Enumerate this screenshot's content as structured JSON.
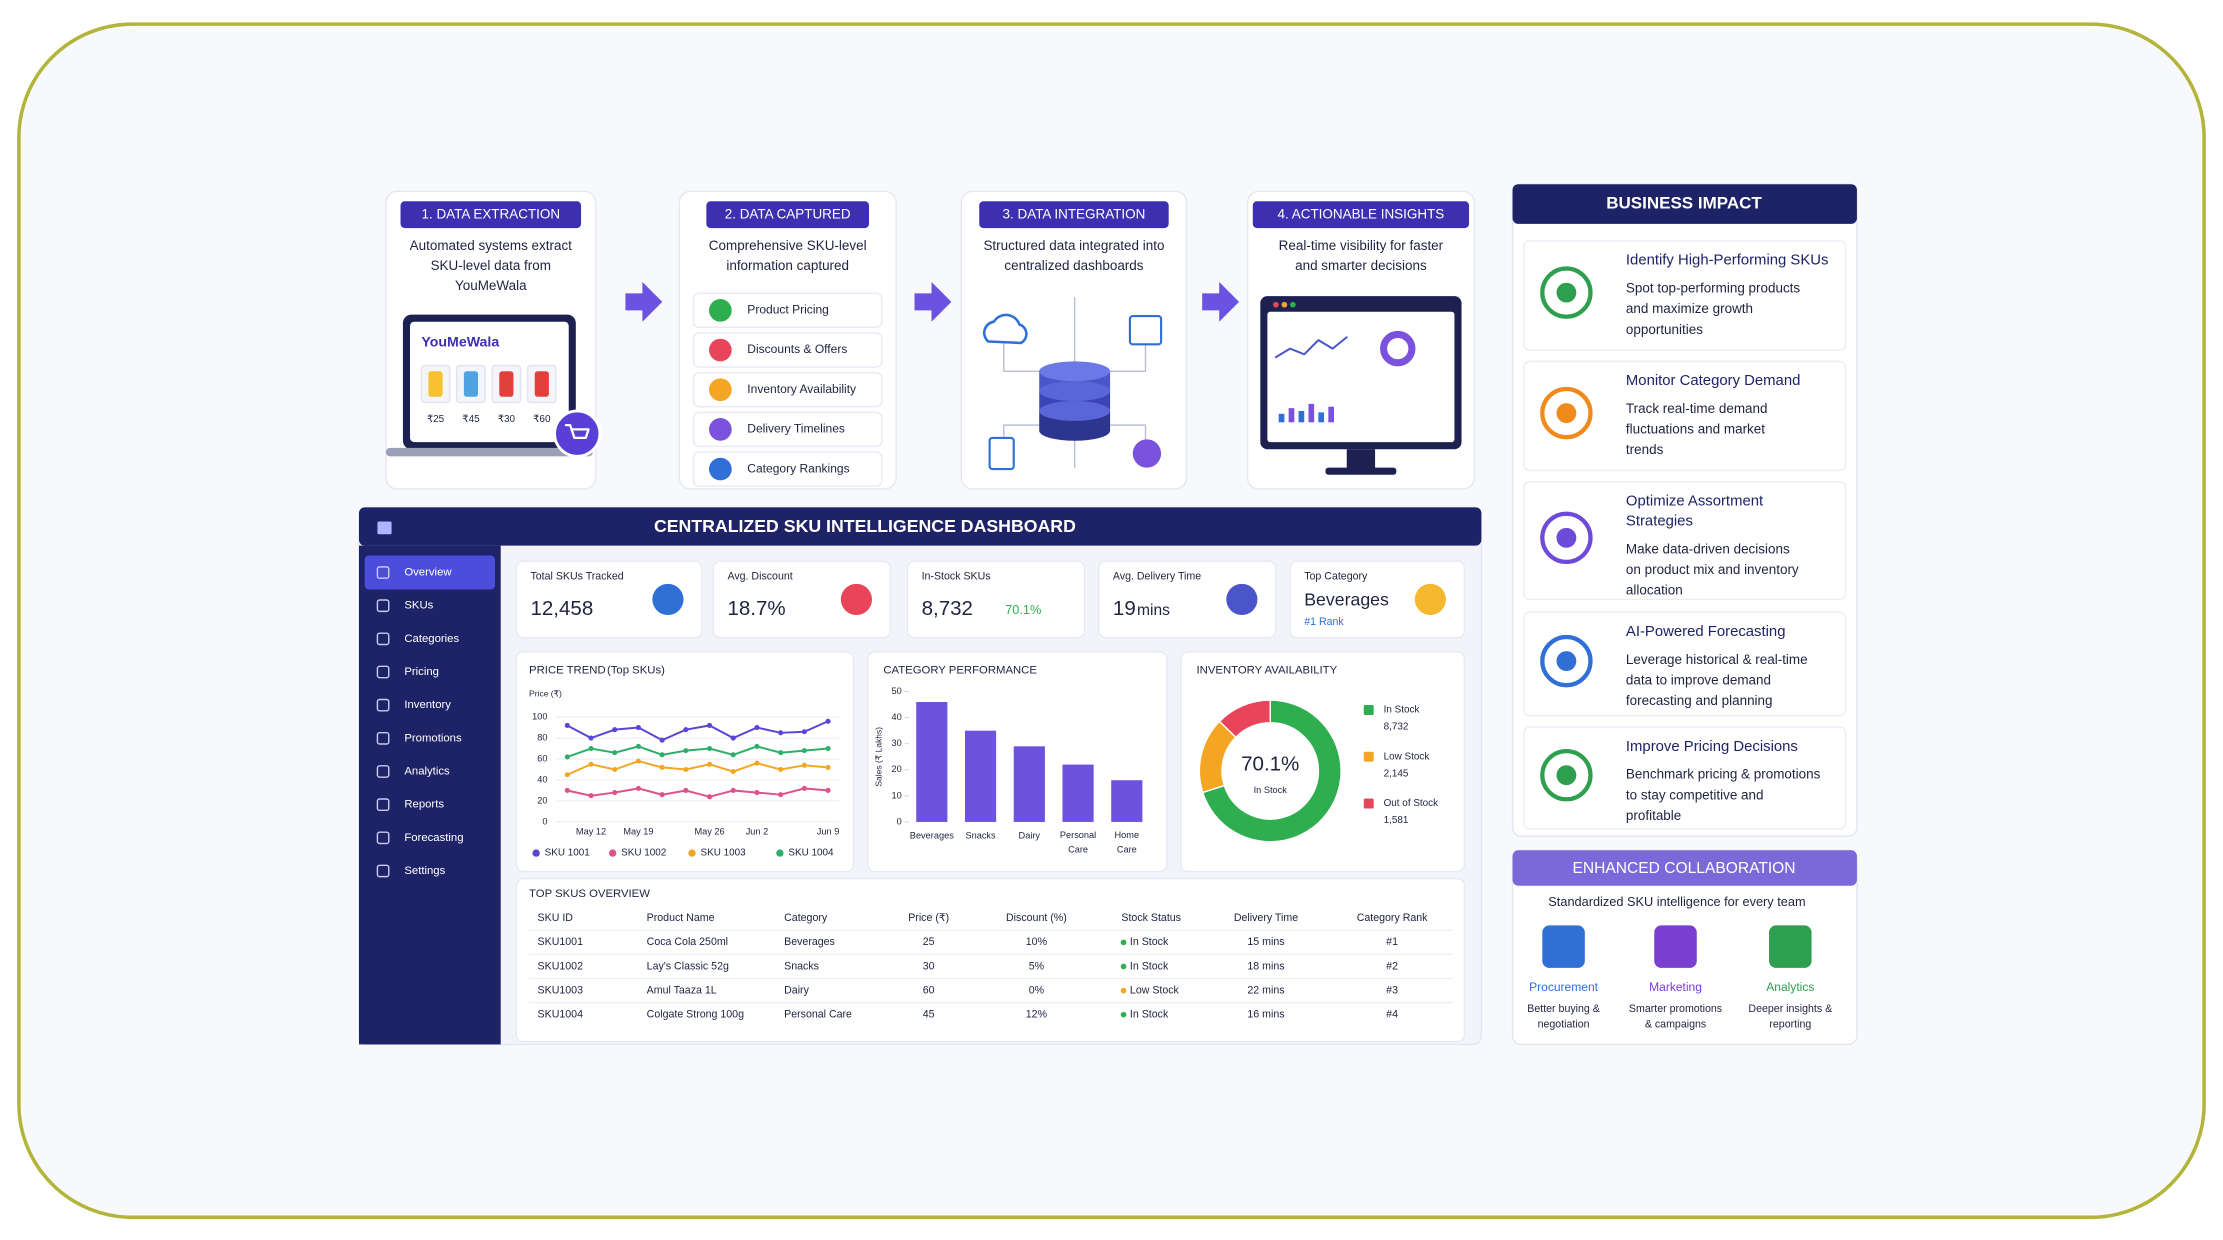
{
  "steps": [
    {
      "badge": "1. DATA EXTRACTION",
      "description": [
        "Automated systems extract",
        "SKU-level data from",
        "YouMeWala"
      ]
    },
    {
      "badge": "2. DATA CAPTURED",
      "description": [
        "Comprehensive SKU-level",
        "information captured"
      ]
    },
    {
      "badge": "3. DATA INTEGRATION",
      "description": [
        "Structured data integrated into",
        "centralized dashboards"
      ]
    },
    {
      "badge": "4. ACTIONABLE INSIGHTS",
      "description": [
        "Real-time visibility for faster",
        "and smarter decisions"
      ]
    }
  ],
  "store": {
    "brand": "YouMeWala",
    "prices": [
      "₹25",
      "₹45",
      "₹30",
      "₹60"
    ]
  },
  "captured_fields": [
    "Product Pricing",
    "Discounts & Offers",
    "Inventory Availability",
    "Delivery Timelines",
    "Category Rankings"
  ],
  "dashboard": {
    "title": "CENTRALIZED SKU INTELLIGENCE DASHBOARD",
    "nav": [
      "Overview",
      "SKUs",
      "Categories",
      "Pricing",
      "Inventory",
      "Promotions",
      "Analytics",
      "Reports",
      "Forecasting",
      "Settings"
    ],
    "kpis": [
      {
        "label": "Total SKUs Tracked",
        "value": "12,458"
      },
      {
        "label": "Avg. Discount",
        "value": "18.7%"
      },
      {
        "label": "In-Stock SKUs",
        "value": "8,732",
        "note": "70.1%"
      },
      {
        "label": "Avg. Delivery Time",
        "value": "19",
        "note": "mins"
      },
      {
        "label": "Top Category",
        "value": "Beverages",
        "note": "#1 Rank"
      }
    ],
    "table": {
      "title": "TOP SKUS OVERVIEW",
      "columns": [
        "SKU ID",
        "Product Name",
        "Category",
        "Price (₹)",
        "Discount (%)",
        "Stock Status",
        "Delivery Time",
        "Category Rank"
      ],
      "rows": [
        [
          "SKU1001",
          "Coca Cola 250ml",
          "Beverages",
          "25",
          "10%",
          "In Stock",
          "15 mins",
          "#1"
        ],
        [
          "SKU1002",
          "Lay's Classic 52g",
          "Snacks",
          "30",
          "5%",
          "In Stock",
          "18 mins",
          "#2"
        ],
        [
          "SKU1003",
          "Amul Taaza 1L",
          "Dairy",
          "60",
          "0%",
          "Low Stock",
          "22 mins",
          "#3"
        ],
        [
          "SKU1004",
          "Colgate Strong 100g",
          "Personal Care",
          "45",
          "12%",
          "In Stock",
          "16 mins",
          "#4"
        ]
      ]
    }
  },
  "chart_data": [
    {
      "type": "line",
      "title": "PRICE TREND",
      "subtitle": "(Top SKUs)",
      "y_label": "Price (₹)",
      "categories": [
        null,
        "May 12",
        null,
        "May 19",
        null,
        null,
        "May 26",
        null,
        "Jun 2",
        null,
        null,
        "Jun 9"
      ],
      "ylim": [
        0,
        100
      ],
      "yticks": [
        0,
        20,
        40,
        60,
        80,
        100
      ],
      "grid": true,
      "series": [
        {
          "name": "SKU 1001",
          "color": "#5b45d6",
          "values": [
            92,
            80,
            88,
            90,
            78,
            88,
            92,
            80,
            90,
            85,
            86,
            96
          ]
        },
        {
          "name": "SKU 1002",
          "color": "#e0508a",
          "values": [
            30,
            25,
            28,
            32,
            26,
            30,
            24,
            30,
            28,
            26,
            32,
            30
          ]
        },
        {
          "name": "SKU 1003",
          "color": "#f2a623",
          "values": [
            45,
            55,
            50,
            58,
            52,
            50,
            55,
            48,
            56,
            50,
            54,
            52
          ]
        },
        {
          "name": "SKU 1004",
          "color": "#2fae6b",
          "values": [
            62,
            70,
            66,
            72,
            64,
            68,
            70,
            64,
            72,
            66,
            68,
            70
          ]
        }
      ]
    },
    {
      "type": "bar",
      "title": "CATEGORY PERFORMANCE",
      "y_label": "Sales (₹ Lakhs)",
      "categories": [
        "Beverages",
        "Snacks",
        "Dairy",
        "Personal Care",
        "Home Care"
      ],
      "values": [
        46,
        35,
        29,
        22,
        16
      ],
      "color": "#6c52dd",
      "ylim": [
        0,
        50
      ],
      "yticks": [
        0,
        10,
        20,
        30,
        40,
        50
      ],
      "grid": false
    },
    {
      "type": "pie",
      "title": "INVENTORY AVAILABILITY",
      "categories": [
        "In Stock",
        "Low Stock",
        "Out of Stock"
      ],
      "values": [
        8732,
        2145,
        1581
      ],
      "value_labels": [
        "8,732",
        "2,145",
        "1,581"
      ],
      "colors": [
        "#2fae4f",
        "#f5a524",
        "#e8455a"
      ],
      "center_label": "70.1%",
      "center_sublabel": "In Stock"
    }
  ],
  "business_impact": {
    "title": "BUSINESS IMPACT",
    "items": [
      {
        "title": [
          "Identify High-Performing SKUs"
        ],
        "description": [
          "Spot top-performing products",
          "and maximize growth",
          "opportunities"
        ]
      },
      {
        "title": [
          "Monitor Category Demand"
        ],
        "description": [
          "Track real-time demand",
          "fluctuations and market",
          "trends"
        ]
      },
      {
        "title": [
          "Optimize Assortment",
          "Strategies"
        ],
        "description": [
          "Make data-driven decisions",
          "on product mix and inventory",
          "allocation"
        ]
      },
      {
        "title": [
          "AI-Powered Forecasting"
        ],
        "description": [
          "Leverage historical & real-time",
          "data to improve demand",
          "forecasting and planning"
        ]
      },
      {
        "title": [
          "Improve Pricing Decisions"
        ],
        "description": [
          "Benchmark pricing & promotions",
          "to stay competitive and",
          "profitable"
        ]
      }
    ]
  },
  "collaboration": {
    "title": "ENHANCED COLLABORATION",
    "subtitle": "Standardized SKU intelligence for every team",
    "teams": [
      {
        "name": "Procurement",
        "description": [
          "Better buying &",
          "negotiation"
        ]
      },
      {
        "name": "Marketing",
        "description": [
          "Smarter promotions",
          "& campaigns"
        ]
      },
      {
        "name": "Analytics",
        "description": [
          "Deeper insights &",
          "reporting"
        ]
      }
    ]
  }
}
